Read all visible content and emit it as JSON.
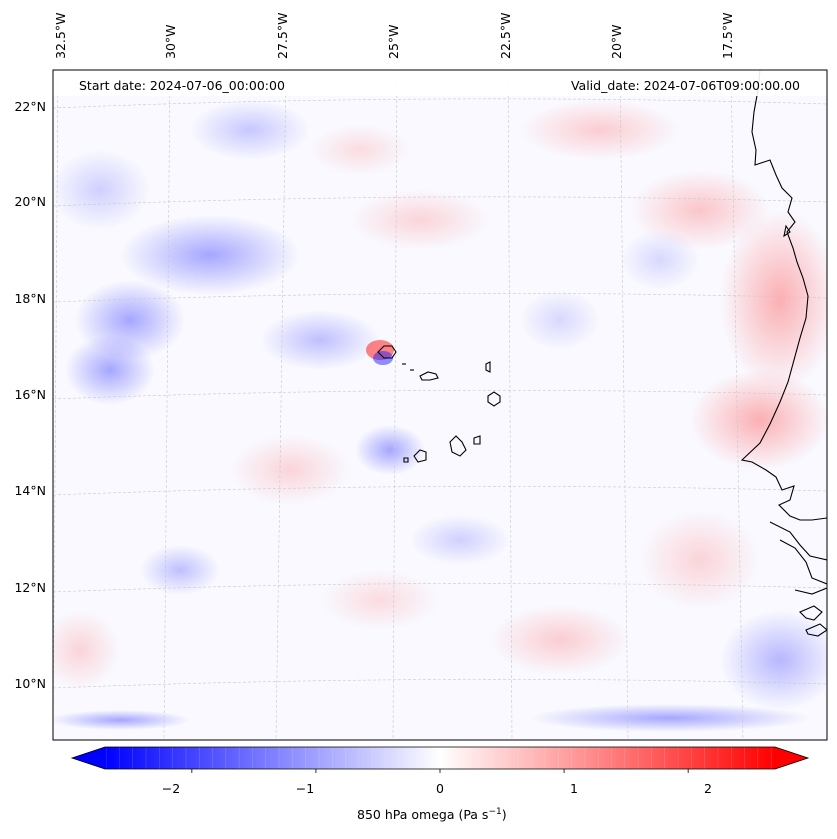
{
  "map": {
    "start_date_label": "Start date: 2024-07-06_00:00:00",
    "valid_date_label": "Valid_date: 2024-07-06T09:00:00.00",
    "lon_labels": [
      "32.5°W",
      "30°W",
      "27.5°W",
      "25°W",
      "22.5°W",
      "20°W",
      "17.5°W"
    ],
    "lat_labels": [
      "22°N",
      "20°N",
      "18°N",
      "16°N",
      "14°N",
      "12°N",
      "10°N"
    ],
    "variable": "850 hPa omega",
    "units": "Pa s",
    "units_exp": "−1",
    "colormap": "bwr",
    "colors": {
      "negative": "#0000ff",
      "zero": "#ffffff",
      "positive": "#ff0000",
      "coastline": "#000000",
      "grid": "#c8c8c8"
    }
  },
  "colorbar": {
    "min": -2.7,
    "max": 2.7,
    "ticks": [
      -2,
      -1,
      0,
      1,
      2
    ],
    "tick_labels": [
      "−2",
      "−1",
      "0",
      "1",
      "2"
    ],
    "label_text": "850 hPa omega (Pa s",
    "label_exp": "−1",
    "label_close": ")"
  }
}
